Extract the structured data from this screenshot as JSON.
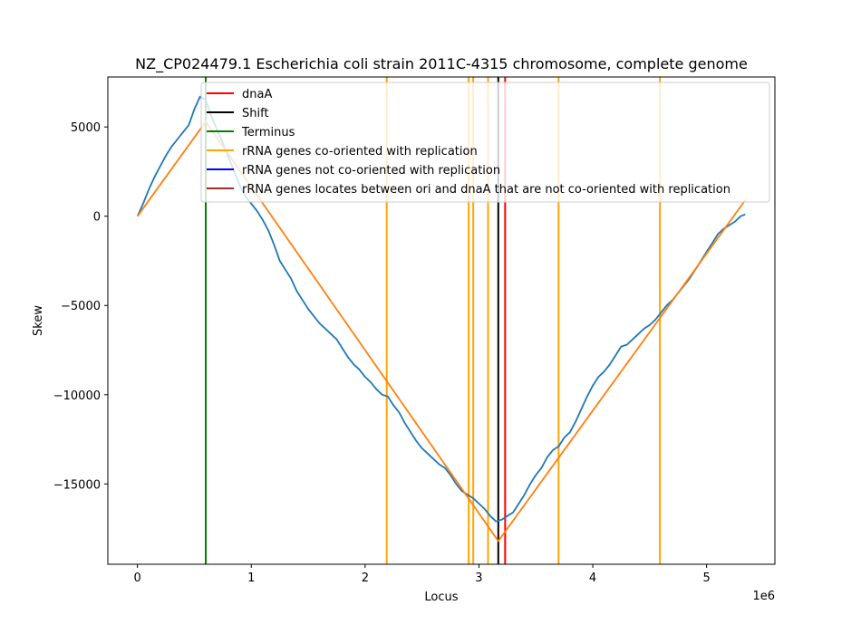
{
  "chart_data": {
    "type": "line",
    "title": "NZ_CP024479.1 Escherichia coli strain 2011C-4315 chromosome, complete genome",
    "xlabel": "Locus",
    "ylabel": "Skew",
    "x_offset_label": "1e6",
    "xlim": [
      -260000,
      5600000
    ],
    "ylim": [
      -19500,
      7800
    ],
    "x_ticks": [
      0,
      1000000,
      2000000,
      3000000,
      4000000,
      5000000
    ],
    "x_tick_labels": [
      "0",
      "1",
      "2",
      "3",
      "4",
      "5"
    ],
    "y_ticks": [
      5000,
      0,
      -5000,
      -10000,
      -15000
    ],
    "y_tick_labels": [
      "5000",
      "0",
      "−5000",
      "−10000",
      "−15000"
    ],
    "grid": false,
    "legend_position": "top-right",
    "series": [
      {
        "name": "",
        "color": "#1f77b4",
        "points": [
          [
            0,
            0
          ],
          [
            50000,
            700
          ],
          [
            100000,
            1500
          ],
          [
            150000,
            2200
          ],
          [
            200000,
            2800
          ],
          [
            250000,
            3400
          ],
          [
            300000,
            3900
          ],
          [
            350000,
            4300
          ],
          [
            400000,
            4700
          ],
          [
            450000,
            5100
          ],
          [
            500000,
            6000
          ],
          [
            550000,
            6700
          ],
          [
            600000,
            6500
          ],
          [
            650000,
            5600
          ],
          [
            700000,
            4800
          ],
          [
            750000,
            4100
          ],
          [
            800000,
            3300
          ],
          [
            850000,
            2500
          ],
          [
            900000,
            1700
          ],
          [
            950000,
            1100
          ],
          [
            1000000,
            700
          ],
          [
            1050000,
            300
          ],
          [
            1100000,
            -200
          ],
          [
            1150000,
            -800
          ],
          [
            1200000,
            -1600
          ],
          [
            1250000,
            -2500
          ],
          [
            1300000,
            -3000
          ],
          [
            1350000,
            -3500
          ],
          [
            1400000,
            -4200
          ],
          [
            1450000,
            -4700
          ],
          [
            1500000,
            -5200
          ],
          [
            1550000,
            -5600
          ],
          [
            1600000,
            -6000
          ],
          [
            1650000,
            -6300
          ],
          [
            1700000,
            -6600
          ],
          [
            1750000,
            -6900
          ],
          [
            1800000,
            -7400
          ],
          [
            1850000,
            -7900
          ],
          [
            1900000,
            -8300
          ],
          [
            1950000,
            -8600
          ],
          [
            2000000,
            -9000
          ],
          [
            2050000,
            -9300
          ],
          [
            2100000,
            -9700
          ],
          [
            2150000,
            -10000
          ],
          [
            2200000,
            -10100
          ],
          [
            2250000,
            -10600
          ],
          [
            2300000,
            -11000
          ],
          [
            2350000,
            -11600
          ],
          [
            2400000,
            -12100
          ],
          [
            2450000,
            -12600
          ],
          [
            2500000,
            -13000
          ],
          [
            2550000,
            -13300
          ],
          [
            2600000,
            -13600
          ],
          [
            2650000,
            -13900
          ],
          [
            2700000,
            -14100
          ],
          [
            2750000,
            -14500
          ],
          [
            2800000,
            -15000
          ],
          [
            2850000,
            -15400
          ],
          [
            2900000,
            -15600
          ],
          [
            2950000,
            -15800
          ],
          [
            3000000,
            -16100
          ],
          [
            3050000,
            -16400
          ],
          [
            3100000,
            -16800
          ],
          [
            3150000,
            -17100
          ],
          [
            3200000,
            -17000
          ],
          [
            3250000,
            -16800
          ],
          [
            3300000,
            -16600
          ],
          [
            3350000,
            -16100
          ],
          [
            3400000,
            -15600
          ],
          [
            3450000,
            -15000
          ],
          [
            3500000,
            -14500
          ],
          [
            3550000,
            -14100
          ],
          [
            3600000,
            -13500
          ],
          [
            3650000,
            -13100
          ],
          [
            3700000,
            -12900
          ],
          [
            3750000,
            -12400
          ],
          [
            3800000,
            -12100
          ],
          [
            3850000,
            -11500
          ],
          [
            3900000,
            -10800
          ],
          [
            3950000,
            -10100
          ],
          [
            4000000,
            -9500
          ],
          [
            4050000,
            -9000
          ],
          [
            4100000,
            -8700
          ],
          [
            4150000,
            -8300
          ],
          [
            4200000,
            -7800
          ],
          [
            4250000,
            -7300
          ],
          [
            4300000,
            -7200
          ],
          [
            4350000,
            -6900
          ],
          [
            4400000,
            -6600
          ],
          [
            4450000,
            -6300
          ],
          [
            4500000,
            -6100
          ],
          [
            4550000,
            -5800
          ],
          [
            4600000,
            -5400
          ],
          [
            4650000,
            -5000
          ],
          [
            4700000,
            -4700
          ],
          [
            4750000,
            -4300
          ],
          [
            4800000,
            -3900
          ],
          [
            4850000,
            -3500
          ],
          [
            4900000,
            -3000
          ],
          [
            4950000,
            -2500
          ],
          [
            5000000,
            -2000
          ],
          [
            5050000,
            -1500
          ],
          [
            5100000,
            -1000
          ],
          [
            5150000,
            -700
          ],
          [
            5200000,
            -500
          ],
          [
            5250000,
            -300
          ],
          [
            5300000,
            0
          ],
          [
            5340000,
            100
          ]
        ]
      },
      {
        "name": "",
        "color": "#ff7f0e",
        "points": [
          [
            0,
            0
          ],
          [
            600000,
            5300
          ],
          [
            3170000,
            -18200
          ],
          [
            5340000,
            900
          ]
        ]
      }
    ],
    "vertical_lines": [
      {
        "x": 3230000,
        "color": "#ff0000",
        "legend": "dnaA"
      },
      {
        "x": 3170000,
        "color": "#000000",
        "legend": "Shift"
      },
      {
        "x": 600000,
        "color": "#008000",
        "legend": "Terminus"
      },
      {
        "x": 2190000,
        "color": "#ffa500",
        "legend": "rRNA genes co-oriented with replication"
      },
      {
        "x": 2910000,
        "color": "#ffa500",
        "legend": ""
      },
      {
        "x": 2950000,
        "color": "#ffa500",
        "legend": ""
      },
      {
        "x": 3080000,
        "color": "#ffa500",
        "legend": ""
      },
      {
        "x": 3700000,
        "color": "#ffa500",
        "legend": ""
      },
      {
        "x": 4590000,
        "color": "#ffa500",
        "legend": ""
      }
    ],
    "legend": [
      {
        "label": "dnaA",
        "color": "#ff0000"
      },
      {
        "label": "Shift",
        "color": "#000000"
      },
      {
        "label": "Terminus",
        "color": "#008000"
      },
      {
        "label": "rRNA genes co-oriented with replication",
        "color": "#ffa500"
      },
      {
        "label": "rRNA genes not co-oriented with replication",
        "color": "#0000ff"
      },
      {
        "label": "rRNA genes locates between ori and dnaA that are not co-oriented with replication",
        "color": "#a52a2a"
      }
    ]
  }
}
